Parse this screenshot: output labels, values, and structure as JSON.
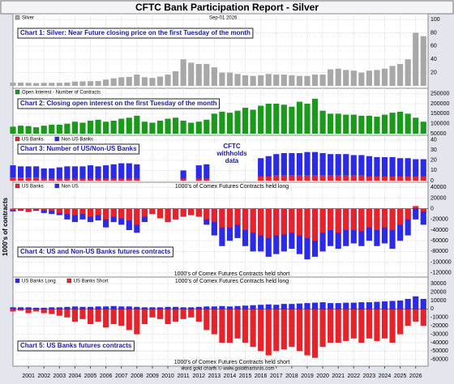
{
  "title": "CFTC Bank Participation Report - Silver",
  "date": "Sep-01  2026",
  "y_axis_label": "1000's of contracts",
  "footer": "word gold charts © www.goldchartsrus.com",
  "note": "CFTC withholds data",
  "chart_data": [
    {
      "type": "bar",
      "title": "Chart 1: Silver: Near Future closing price on the first Tuesday of the month",
      "x": [
        2000,
        2000.5,
        2001,
        2001.5,
        2002,
        2002.5,
        2003,
        2003.5,
        2004,
        2004.5,
        2005,
        2005.5,
        2006,
        2006.5,
        2007,
        2007.5,
        2008,
        2008.5,
        2009,
        2009.5,
        2010,
        2010.5,
        2011,
        2011.5,
        2012,
        2012.5,
        2013,
        2013.5,
        2014,
        2014.5,
        2015,
        2015.5,
        2016,
        2016.5,
        2017,
        2017.5,
        2018,
        2018.5,
        2019,
        2019.5,
        2020,
        2020.5,
        2021,
        2021.5,
        2022,
        2022.5,
        2023,
        2023.5,
        2024,
        2024.5,
        2025,
        2025.5,
        2026,
        2026.5
      ],
      "xlim": [
        2000,
        2026.8
      ],
      "ylim": [
        0,
        105
      ],
      "yticks": [
        20,
        40,
        60,
        80,
        100
      ],
      "grid": true,
      "series": [
        {
          "name": "Silver",
          "color": "#a8a8a8",
          "values": [
            5,
            5,
            4.6,
            4.3,
            4.6,
            4.6,
            4.6,
            5,
            6.5,
            6.8,
            7,
            7.3,
            9.5,
            11.5,
            13,
            13.5,
            17,
            13,
            12,
            14,
            17,
            22,
            40,
            35,
            33,
            33,
            28,
            20,
            20,
            18,
            16,
            15,
            16,
            18,
            17,
            17,
            16,
            15,
            15,
            17,
            17,
            25,
            26,
            24,
            23,
            20,
            23,
            24,
            26,
            30,
            33,
            40,
            80,
            75
          ]
        }
      ]
    },
    {
      "type": "bar",
      "title": "Chart 2: Closing open interest on the first Tuesday of the month",
      "x": [
        2000,
        2000.5,
        2001,
        2001.5,
        2002,
        2002.5,
        2003,
        2003.5,
        2004,
        2004.5,
        2005,
        2005.5,
        2006,
        2006.5,
        2007,
        2007.5,
        2008,
        2008.5,
        2009,
        2009.5,
        2010,
        2010.5,
        2011,
        2011.5,
        2012,
        2012.5,
        2013,
        2013.5,
        2014,
        2014.5,
        2015,
        2015.5,
        2016,
        2016.5,
        2017,
        2017.5,
        2018,
        2018.5,
        2019,
        2019.5,
        2020,
        2020.5,
        2021,
        2021.5,
        2022,
        2022.5,
        2023,
        2023.5,
        2024,
        2024.5,
        2025,
        2025.5,
        2026,
        2026.5
      ],
      "xlim": [
        2000,
        2026.8
      ],
      "ylim": [
        50000,
        265000
      ],
      "yticks": [
        50000,
        100000,
        150000,
        200000,
        250000
      ],
      "grid": true,
      "series": [
        {
          "name": "Open Interest - Number of Contracts",
          "color": "#1a9a1a",
          "values": [
            85000,
            90000,
            88000,
            82000,
            90000,
            95000,
            95000,
            100000,
            110000,
            105000,
            115000,
            120000,
            110000,
            115000,
            125000,
            130000,
            140000,
            110000,
            105000,
            115000,
            125000,
            130000,
            115000,
            105000,
            110000,
            120000,
            150000,
            160000,
            155000,
            165000,
            180000,
            170000,
            190000,
            200000,
            200000,
            195000,
            185000,
            210000,
            200000,
            225000,
            165000,
            150000,
            150000,
            145000,
            145000,
            140000,
            140000,
            135000,
            145000,
            155000,
            160000,
            150000,
            130000,
            110000
          ]
        }
      ]
    },
    {
      "type": "bar",
      "stacked": true,
      "title": "Chart 3: Number of US/Non-US Banks",
      "x": [
        2000,
        2000.5,
        2001,
        2001.5,
        2002,
        2002.5,
        2003,
        2003.5,
        2004,
        2004.5,
        2005,
        2005.5,
        2006,
        2006.5,
        2007,
        2007.5,
        2008,
        2008.5,
        2009,
        2009.5,
        2010,
        2010.5,
        2011,
        2011.5,
        2012,
        2012.5,
        2013,
        2013.5,
        2014,
        2014.5,
        2015,
        2015.5,
        2016,
        2016.5,
        2017,
        2017.5,
        2018,
        2018.5,
        2019,
        2019.5,
        2020,
        2020.5,
        2021,
        2021.5,
        2022,
        2022.5,
        2023,
        2023.5,
        2024,
        2024.5,
        2025,
        2025.5,
        2026,
        2026.5
      ],
      "xlim": [
        2000,
        2026.8
      ],
      "ylim": [
        0,
        42
      ],
      "yticks": [
        0,
        10,
        20,
        30,
        40
      ],
      "grid": true,
      "series": [
        {
          "name": "US Banks",
          "color": "#e8222a",
          "values": [
            3,
            3,
            3,
            3,
            2,
            2,
            2,
            2,
            2,
            2,
            2,
            2,
            2,
            2,
            2,
            2,
            2,
            null,
            null,
            null,
            null,
            null,
            2,
            null,
            2,
            2,
            null,
            null,
            null,
            null,
            null,
            null,
            4,
            4,
            5,
            5,
            5,
            5,
            5,
            5,
            5,
            5,
            5,
            5,
            5,
            5,
            4,
            4,
            4,
            4,
            4,
            4,
            4,
            4
          ]
        },
        {
          "name": "Non US Banks",
          "color": "#2a2ae8",
          "values": [
            12,
            11,
            11,
            11,
            10,
            10,
            11,
            12,
            12,
            12,
            13,
            12,
            13,
            14,
            15,
            15,
            14,
            null,
            null,
            null,
            null,
            null,
            8,
            null,
            13,
            14,
            null,
            null,
            null,
            null,
            null,
            null,
            18,
            20,
            21,
            22,
            22,
            22,
            23,
            23,
            22,
            21,
            21,
            21,
            20,
            20,
            20,
            19,
            19,
            19,
            18,
            18,
            17,
            17
          ]
        }
      ]
    },
    {
      "type": "bar",
      "title": "Chart 4: US and Non-US Banks futures contracts",
      "annotations": [
        "1000's of Comex Futures Contracts held long",
        "1000's of Comex Futures Contracts held short"
      ],
      "x": [
        2000,
        2000.5,
        2001,
        2001.5,
        2002,
        2002.5,
        2003,
        2003.5,
        2004,
        2004.5,
        2005,
        2005.5,
        2006,
        2006.5,
        2007,
        2007.5,
        2008,
        2008.5,
        2009,
        2009.5,
        2010,
        2010.5,
        2011,
        2011.5,
        2012,
        2012.5,
        2013,
        2013.5,
        2014,
        2014.5,
        2015,
        2015.5,
        2016,
        2016.5,
        2017,
        2017.5,
        2018,
        2018.5,
        2019,
        2019.5,
        2020,
        2020.5,
        2021,
        2021.5,
        2022,
        2022.5,
        2023,
        2023.5,
        2024,
        2024.5,
        2025,
        2025.5,
        2026,
        2026.5
      ],
      "xlim": [
        2000,
        2026.8
      ],
      "ylim": [
        -125000,
        45000
      ],
      "yticks": [
        -120000,
        -100000,
        -80000,
        -60000,
        -40000,
        -20000,
        0,
        20000,
        40000
      ],
      "grid": true,
      "series": [
        {
          "name": "US Banks",
          "color": "#e8222a",
          "values": [
            -3000,
            -2000,
            -5000,
            -2000,
            -3000,
            -4000,
            -8000,
            -10000,
            -12000,
            -10000,
            -15000,
            -12000,
            -20000,
            -15000,
            -18000,
            -22000,
            -30000,
            -15000,
            -10000,
            -18000,
            -25000,
            -20000,
            -15000,
            -12000,
            -15000,
            -20000,
            -25000,
            -35000,
            -35000,
            -30000,
            -40000,
            -45000,
            -50000,
            -55000,
            -50000,
            -48000,
            -45000,
            -50000,
            -55000,
            -60000,
            -45000,
            -40000,
            -45000,
            -40000,
            -40000,
            -42000,
            -35000,
            -40000,
            -35000,
            -40000,
            -30000,
            -20000,
            5000,
            -5000
          ]
        },
        {
          "name": "Non US",
          "color": "#2a2ae8",
          "values": [
            -5000,
            -4000,
            -6000,
            -4000,
            -8000,
            -10000,
            -12000,
            -20000,
            -25000,
            -20000,
            -25000,
            -22000,
            -35000,
            -25000,
            -30000,
            -40000,
            -45000,
            -25000,
            -10000,
            -15000,
            -25000,
            -20000,
            -15000,
            -12000,
            -15000,
            -30000,
            -50000,
            -70000,
            -60000,
            -55000,
            -70000,
            -80000,
            -80000,
            -90000,
            -85000,
            -80000,
            -75000,
            -85000,
            -95000,
            -90000,
            -80000,
            -70000,
            -75000,
            -70000,
            -65000,
            -70000,
            -60000,
            -70000,
            -65000,
            -75000,
            -60000,
            -50000,
            -20000,
            -30000
          ]
        }
      ]
    },
    {
      "type": "bar",
      "title": "Chart 5: US Banks futures contracts",
      "annotations": [
        "1000's of Comex Futures Contracts held long",
        "1000's of Comex Futures Contracts held short"
      ],
      "x": [
        2000,
        2000.5,
        2001,
        2001.5,
        2002,
        2002.5,
        2003,
        2003.5,
        2004,
        2004.5,
        2005,
        2005.5,
        2006,
        2006.5,
        2007,
        2007.5,
        2008,
        2008.5,
        2009,
        2009.5,
        2010,
        2010.5,
        2011,
        2011.5,
        2012,
        2012.5,
        2013,
        2013.5,
        2014,
        2014.5,
        2015,
        2015.5,
        2016,
        2016.5,
        2017,
        2017.5,
        2018,
        2018.5,
        2019,
        2019.5,
        2020,
        2020.5,
        2021,
        2021.5,
        2022,
        2022.5,
        2023,
        2023.5,
        2024,
        2024.5,
        2025,
        2025.5,
        2026,
        2026.5
      ],
      "xlim": [
        2000,
        2026.8
      ],
      "ylim": [
        -65000,
        35000
      ],
      "yticks": [
        -60000,
        -50000,
        -40000,
        -30000,
        -20000,
        -10000,
        0,
        10000,
        20000,
        30000
      ],
      "grid": true,
      "xticks": [
        2001,
        2002,
        2003,
        2004,
        2005,
        2006,
        2007,
        2008,
        2009,
        2010,
        2011,
        2012,
        2013,
        2014,
        2015,
        2016,
        2017,
        2018,
        2019,
        2020,
        2021,
        2022,
        2023,
        2024,
        2025,
        2026
      ],
      "series": [
        {
          "name": "US Banks Long",
          "color": "#2a2ae8",
          "values": [
            2000,
            2000,
            2000,
            1500,
            1500,
            2000,
            2000,
            2500,
            3000,
            2500,
            2500,
            3000,
            3000,
            3500,
            3000,
            3000,
            2500,
            2000,
            2000,
            2000,
            2500,
            2500,
            2000,
            2000,
            2500,
            3000,
            3000,
            3500,
            3000,
            3500,
            4000,
            4500,
            5000,
            5500,
            5000,
            6000,
            6000,
            6500,
            7000,
            7500,
            8000,
            7000,
            7000,
            7500,
            7500,
            8000,
            8000,
            8500,
            9000,
            9500,
            10000,
            12000,
            15000,
            12000
          ]
        },
        {
          "name": "US Banks Short",
          "color": "#e8222a",
          "values": [
            -3000,
            -2000,
            -5000,
            -3000,
            -5000,
            -6000,
            -8000,
            -10000,
            -15000,
            -12000,
            -18000,
            -15000,
            -22000,
            -18000,
            -20000,
            -25000,
            -30000,
            -18000,
            -10000,
            -12000,
            -18000,
            -15000,
            -12000,
            -10000,
            -15000,
            -25000,
            -30000,
            -40000,
            -40000,
            -35000,
            -40000,
            -45000,
            -50000,
            -55000,
            -50000,
            -48000,
            -45000,
            -50000,
            -55000,
            -58000,
            -45000,
            -40000,
            -40000,
            -38000,
            -35000,
            -40000,
            -35000,
            -38000,
            -35000,
            -40000,
            -30000,
            -20000,
            -15000,
            -20000
          ]
        }
      ]
    }
  ]
}
